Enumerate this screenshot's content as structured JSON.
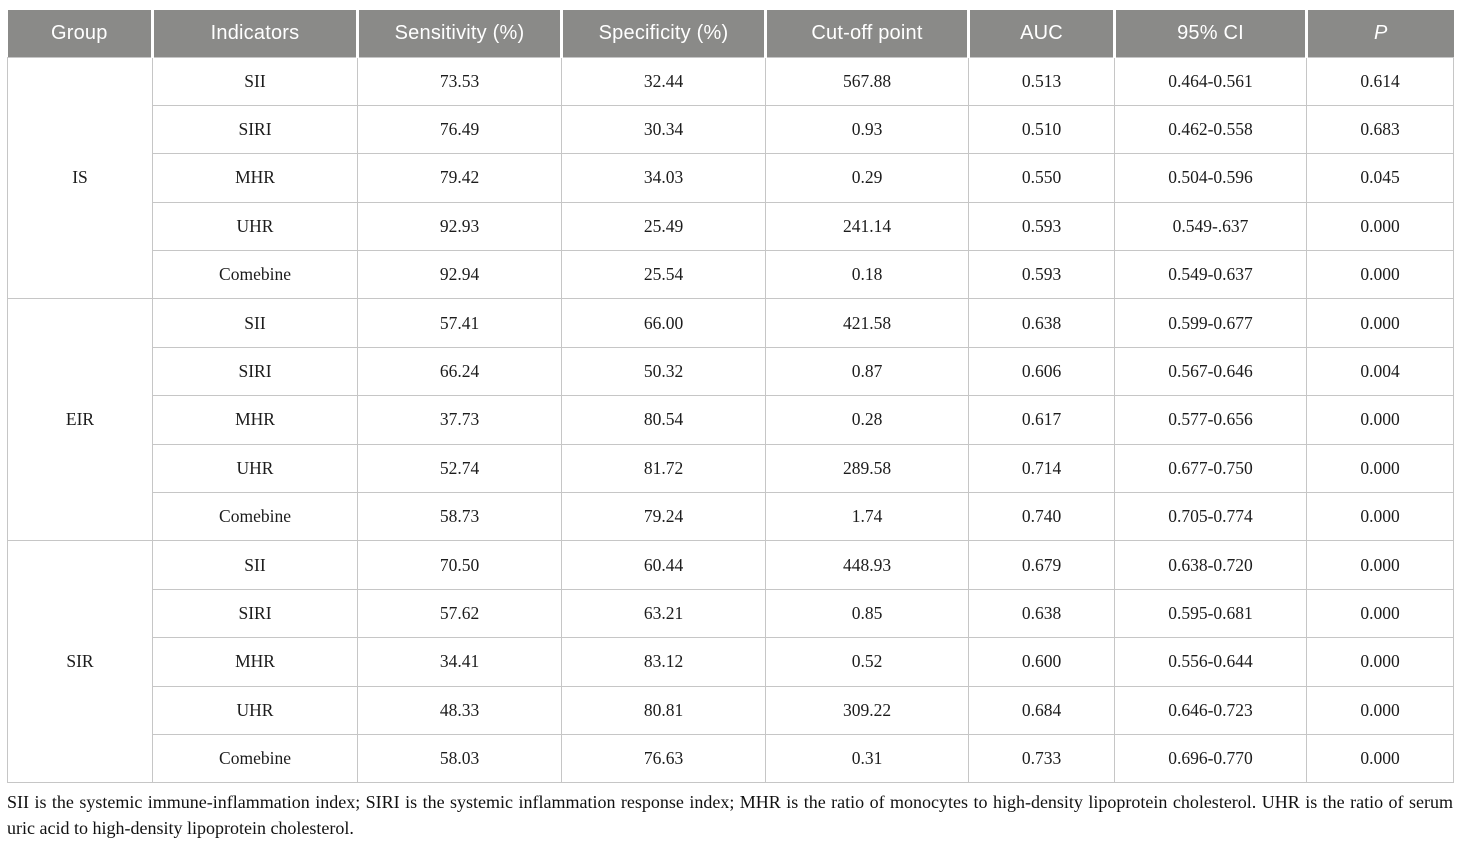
{
  "table": {
    "columns": [
      "Group",
      "Indicators",
      "Sensitivity (%)",
      "Specificity (%)",
      "Cut-off point",
      "AUC",
      "95% CI",
      "P"
    ],
    "groups": [
      {
        "name": "IS",
        "rows": [
          {
            "indicator": "SII",
            "sensitivity": "73.53",
            "specificity": "32.44",
            "cutoff": "567.88",
            "auc": "0.513",
            "ci": "0.464-0.561",
            "p": "0.614"
          },
          {
            "indicator": "SIRI",
            "sensitivity": "76.49",
            "specificity": "30.34",
            "cutoff": "0.93",
            "auc": "0.510",
            "ci": "0.462-0.558",
            "p": "0.683"
          },
          {
            "indicator": "MHR",
            "sensitivity": "79.42",
            "specificity": "34.03",
            "cutoff": "0.29",
            "auc": "0.550",
            "ci": "0.504-0.596",
            "p": "0.045"
          },
          {
            "indicator": "UHR",
            "sensitivity": "92.93",
            "specificity": "25.49",
            "cutoff": "241.14",
            "auc": "0.593",
            "ci": "0.549-.637",
            "p": "0.000"
          },
          {
            "indicator": "Comebine",
            "sensitivity": "92.94",
            "specificity": "25.54",
            "cutoff": "0.18",
            "auc": "0.593",
            "ci": "0.549-0.637",
            "p": "0.000"
          }
        ]
      },
      {
        "name": "EIR",
        "rows": [
          {
            "indicator": "SII",
            "sensitivity": "57.41",
            "specificity": "66.00",
            "cutoff": "421.58",
            "auc": "0.638",
            "ci": "0.599-0.677",
            "p": "0.000"
          },
          {
            "indicator": "SIRI",
            "sensitivity": "66.24",
            "specificity": "50.32",
            "cutoff": "0.87",
            "auc": "0.606",
            "ci": "0.567-0.646",
            "p": "0.004"
          },
          {
            "indicator": "MHR",
            "sensitivity": "37.73",
            "specificity": "80.54",
            "cutoff": "0.28",
            "auc": "0.617",
            "ci": "0.577-0.656",
            "p": "0.000"
          },
          {
            "indicator": "UHR",
            "sensitivity": "52.74",
            "specificity": "81.72",
            "cutoff": "289.58",
            "auc": "0.714",
            "ci": "0.677-0.750",
            "p": "0.000"
          },
          {
            "indicator": "Comebine",
            "sensitivity": "58.73",
            "specificity": "79.24",
            "cutoff": "1.74",
            "auc": "0.740",
            "ci": "0.705-0.774",
            "p": "0.000"
          }
        ]
      },
      {
        "name": "SIR",
        "rows": [
          {
            "indicator": "SII",
            "sensitivity": "70.50",
            "specificity": "60.44",
            "cutoff": "448.93",
            "auc": "0.679",
            "ci": "0.638-0.720",
            "p": "0.000"
          },
          {
            "indicator": "SIRI",
            "sensitivity": "57.62",
            "specificity": "63.21",
            "cutoff": "0.85",
            "auc": "0.638",
            "ci": "0.595-0.681",
            "p": "0.000"
          },
          {
            "indicator": "MHR",
            "sensitivity": "34.41",
            "specificity": "83.12",
            "cutoff": "0.52",
            "auc": "0.600",
            "ci": "0.556-0.644",
            "p": "0.000"
          },
          {
            "indicator": "UHR",
            "sensitivity": "48.33",
            "specificity": "80.81",
            "cutoff": "309.22",
            "auc": "0.684",
            "ci": "0.646-0.723",
            "p": "0.000"
          },
          {
            "indicator": "Comebine",
            "sensitivity": "58.03",
            "specificity": "76.63",
            "cutoff": "0.31",
            "auc": "0.733",
            "ci": "0.696-0.770",
            "p": "0.000"
          }
        ]
      }
    ],
    "footnote": "SII is the systemic immune-inflammation index; SIRI is the systemic inflammation response index; MHR is the ratio of monocytes to high-density lipoprotein cholesterol. UHR is the ratio of serum uric acid to high-density lipoprotein cholesterol."
  },
  "colors": {
    "header_bg": "#8a8a88",
    "header_text": "#ffffff",
    "body_text": "#1c1c1c",
    "grid_line": "#c6c6c6"
  }
}
